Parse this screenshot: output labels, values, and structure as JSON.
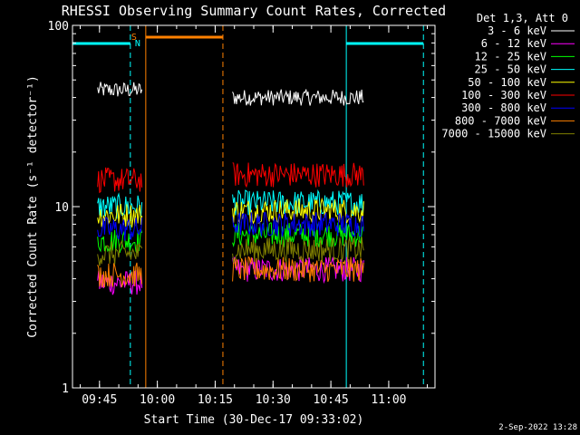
{
  "chart_data": {
    "type": "line",
    "title": "RHESSI Observing Summary Count Rates, Corrected",
    "xlabel": "Start Time (30-Dec-17 09:33:02)",
    "ylabel": "Corrected Count Rate (s⁻¹ detector⁻¹)",
    "yscale": "log",
    "ylim": [
      1,
      100
    ],
    "xlim": [
      "09:38",
      "11:12"
    ],
    "x_ticks": [
      "09:45",
      "10:00",
      "10:15",
      "10:30",
      "10:45",
      "11:00"
    ],
    "y_ticks": [
      "1",
      "10",
      "100"
    ],
    "legend_title": "Det 1,3, Att 0",
    "legend_position": "right",
    "timestamp": "2-Sep-2022 13:28",
    "flags": {
      "saa_label": "S",
      "night_label": "N",
      "cyan_bars": [
        {
          "start": "09:38",
          "end": "09:53"
        },
        {
          "start": "10:49",
          "end": "11:09"
        }
      ],
      "orange_bar": {
        "start": "09:57",
        "end": "10:17"
      },
      "vlines": [
        {
          "t": "09:38",
          "color": "#00ffff",
          "style": "solid"
        },
        {
          "t": "09:53",
          "color": "#00ffff",
          "style": "dashed"
        },
        {
          "t": "09:57",
          "color": "#ff8000",
          "style": "solid"
        },
        {
          "t": "10:17",
          "color": "#ff8000",
          "style": "dashed"
        },
        {
          "t": "10:49",
          "color": "#00ffff",
          "style": "solid"
        },
        {
          "t": "11:09",
          "color": "#00ffff",
          "style": "dashed"
        }
      ]
    },
    "segments": [
      {
        "start": "09:44.5",
        "end": "09:56"
      },
      {
        "start": "10:19.5",
        "end": "10:53.5"
      }
    ],
    "series": [
      {
        "name": "3 - 6 keV",
        "color": "#ffffff",
        "levels": [
          44,
          40
        ]
      },
      {
        "name": "6 - 12 keV",
        "color": "#ff00ff",
        "levels": [
          3.8,
          4.5
        ]
      },
      {
        "name": "12 - 25 keV",
        "color": "#00ff00",
        "levels": [
          6.5,
          7
        ]
      },
      {
        "name": "25 - 50 keV",
        "color": "#00ffff",
        "levels": [
          10,
          10.5
        ]
      },
      {
        "name": "50 - 100 keV",
        "color": "#ffff00",
        "levels": [
          9,
          9.5
        ]
      },
      {
        "name": "100 - 300 keV",
        "color": "#ff0000",
        "levels": [
          14,
          15
        ]
      },
      {
        "name": "300 - 800 keV",
        "color": "#0000ff",
        "levels": [
          7.5,
          8
        ]
      },
      {
        "name": "800 - 7000 keV",
        "color": "#ff8000",
        "levels": [
          4.2,
          4.5
        ]
      },
      {
        "name": "7000 - 15000 keV",
        "color": "#808000",
        "levels": [
          5.5,
          5.8
        ]
      }
    ]
  }
}
